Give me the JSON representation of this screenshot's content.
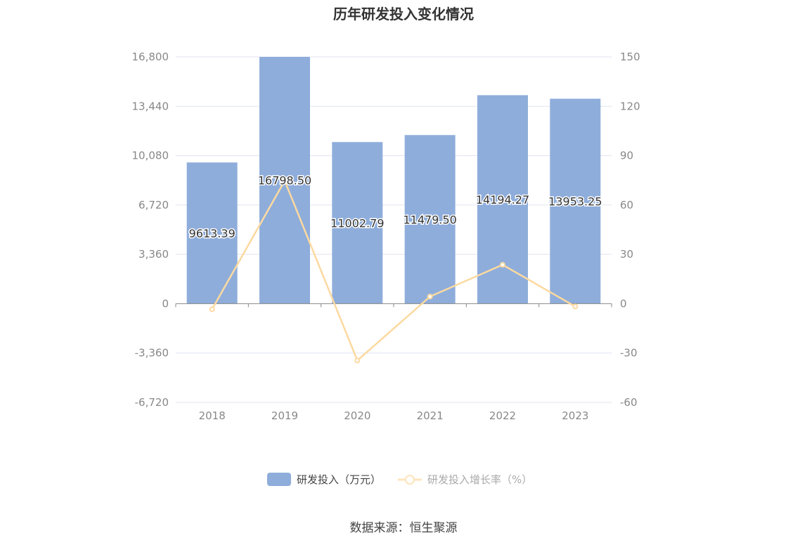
{
  "chart_data": {
    "type": "bar+line",
    "title": "历年研发投入变化情况",
    "categories": [
      "2018",
      "2019",
      "2020",
      "2021",
      "2022",
      "2023"
    ],
    "series": [
      {
        "name": "研发投入（万元）",
        "type": "bar",
        "axis": "left",
        "values": [
          9613.39,
          16798.5,
          11002.79,
          11479.5,
          14194.27,
          13953.25
        ],
        "labels": [
          "9613.39",
          "16798.50",
          "11002.79",
          "11479.50",
          "14194.27",
          "13953.25"
        ],
        "color": "#8eaddb"
      },
      {
        "name": "研发投入增长率（%）",
        "type": "line",
        "axis": "right",
        "values": [
          -3.4,
          74.74,
          -34.5,
          4.33,
          23.65,
          -1.7
        ],
        "color": "#fcd9a0"
      }
    ],
    "left_axis": {
      "ylim": [
        -6720,
        16800
      ],
      "ticks": [
        "16,800",
        "13,440",
        "10,080",
        "6,720",
        "3,360",
        "0",
        "-3,360",
        "-6,720"
      ]
    },
    "right_axis": {
      "ylim": [
        -60,
        150
      ],
      "ticks": [
        "150",
        "120",
        "90",
        "60",
        "30",
        "0",
        "-30",
        "-60"
      ]
    },
    "grid": true,
    "legend": "bottom"
  },
  "source": "数据来源：恒生聚源"
}
